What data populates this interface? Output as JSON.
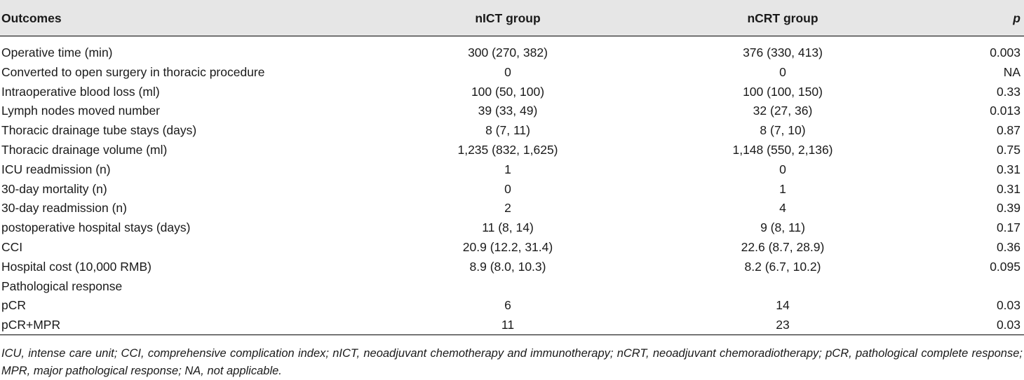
{
  "table": {
    "headers": {
      "outcomes": "Outcomes",
      "nict": "nICT group",
      "ncrt": "nCRT group",
      "p": "p"
    },
    "rows": [
      {
        "label": "Operative time (min)",
        "nict": "300 (270, 382)",
        "ncrt": "376 (330, 413)",
        "p": "0.003"
      },
      {
        "label": "Converted to open surgery in thoracic procedure",
        "nict": "0",
        "ncrt": "0",
        "p": "NA"
      },
      {
        "label": "Intraoperative blood loss (ml)",
        "nict": "100 (50, 100)",
        "ncrt": "100 (100, 150)",
        "p": "0.33"
      },
      {
        "label": "Lymph nodes moved number",
        "nict": "39 (33, 49)",
        "ncrt": "32 (27, 36)",
        "p": "0.013"
      },
      {
        "label": "Thoracic drainage tube stays (days)",
        "nict": "8 (7, 11)",
        "ncrt": "8 (7, 10)",
        "p": "0.87"
      },
      {
        "label": "Thoracic drainage volume (ml)",
        "nict": "1,235 (832, 1,625)",
        "ncrt": "1,148 (550, 2,136)",
        "p": "0.75"
      },
      {
        "label": "ICU readmission (n)",
        "nict": "1",
        "ncrt": "0",
        "p": "0.31"
      },
      {
        "label": "30-day mortality (n)",
        "nict": "0",
        "ncrt": "1",
        "p": "0.31"
      },
      {
        "label": "30-day readmission (n)",
        "nict": "2",
        "ncrt": "4",
        "p": "0.39"
      },
      {
        "label": "postoperative hospital stays (days)",
        "nict": "11 (8, 14)",
        "ncrt": "9 (8, 11)",
        "p": "0.17"
      },
      {
        "label": "CCI",
        "nict": "20.9 (12.2, 31.4)",
        "ncrt": "22.6 (8.7, 28.9)",
        "p": "0.36"
      },
      {
        "label": "Hospital cost (10,000 RMB)",
        "nict": "8.9 (8.0, 10.3)",
        "ncrt": "8.2 (6.7, 10.2)",
        "p": "0.095"
      },
      {
        "label": "Pathological response",
        "nict": "",
        "ncrt": "",
        "p": ""
      },
      {
        "label": "pCR",
        "nict": "6",
        "ncrt": "14",
        "p": "0.03"
      },
      {
        "label": "pCR+MPR",
        "nict": "11",
        "ncrt": "23",
        "p": "0.03"
      }
    ]
  },
  "footnote": "ICU, intense care unit; CCI, comprehensive complication index; nICT, neoadjuvant chemotherapy and immunotherapy; nCRT, neoadjuvant chemoradiotherapy; pCR, pathological complete response; MPR, major pathological response; NA, not applicable."
}
